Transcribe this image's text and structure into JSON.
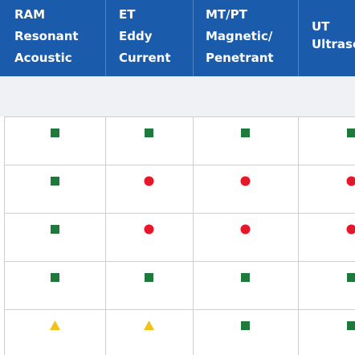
{
  "table": {
    "header": [
      [
        "RAM",
        "Resonant",
        "Acoustic"
      ],
      [
        "ET",
        "Eddy",
        "Current"
      ],
      [
        "MT/PT",
        "Magnetic/",
        "Penetrant"
      ],
      [
        "UT",
        "Ultrasonic"
      ]
    ]
  }
}
